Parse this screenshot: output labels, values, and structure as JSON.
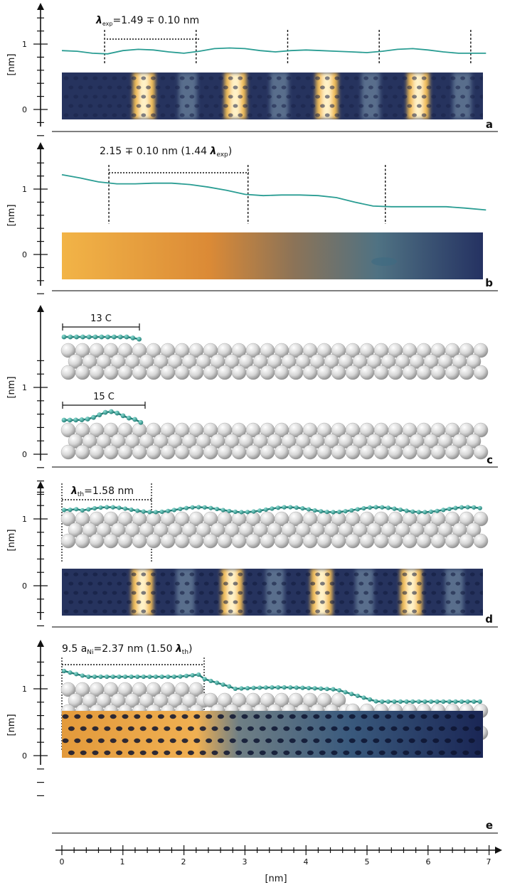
{
  "panels": [
    {
      "letter": "a",
      "y_axis_label": "[nm]",
      "y_ticks": [
        "1",
        "0"
      ],
      "annotation": {
        "sym": "λ",
        "sub": "exp",
        "rest": "=1.49 ∓ 0.10  nm"
      },
      "curve_x_nm": [
        0,
        0.25,
        0.5,
        0.75,
        1.0,
        1.25,
        1.5,
        1.75,
        2.0,
        2.25,
        2.5,
        2.75,
        3.0,
        3.25,
        3.5,
        3.75,
        4.0,
        4.25,
        4.5,
        4.75,
        5.0,
        5.25,
        5.5,
        5.75,
        6.0,
        6.25,
        6.5,
        6.75,
        6.95
      ],
      "curve_y_nm": [
        0.9,
        0.89,
        0.86,
        0.85,
        0.9,
        0.92,
        0.91,
        0.88,
        0.86,
        0.89,
        0.93,
        0.94,
        0.93,
        0.9,
        0.88,
        0.9,
        0.91,
        0.9,
        0.89,
        0.88,
        0.87,
        0.89,
        0.92,
        0.93,
        0.91,
        0.88,
        0.86,
        0.86,
        0.86
      ],
      "dashed_x_nm": [
        0.7,
        2.2,
        3.7,
        5.2,
        6.7
      ],
      "dotted_span_nm": [
        0.7,
        2.2
      ],
      "image": "stm-stripes"
    },
    {
      "letter": "b",
      "y_axis_label": "[nm]",
      "y_ticks": [
        "1",
        "0"
      ],
      "annotation": {
        "pre": "2.15 ∓ 0.10  nm (1.44 ",
        "sym": "λ",
        "sub": "exp",
        "post": ")"
      },
      "curve_x_nm": [
        0,
        0.3,
        0.6,
        0.9,
        1.2,
        1.5,
        1.8,
        2.1,
        2.4,
        2.7,
        3.0,
        3.3,
        3.6,
        3.9,
        4.2,
        4.5,
        4.8,
        5.1,
        5.4,
        5.7,
        6.0,
        6.3,
        6.6,
        6.95
      ],
      "curve_y_nm": [
        1.22,
        1.17,
        1.11,
        1.08,
        1.08,
        1.09,
        1.09,
        1.07,
        1.03,
        0.98,
        0.92,
        0.9,
        0.91,
        0.91,
        0.9,
        0.87,
        0.8,
        0.74,
        0.73,
        0.73,
        0.73,
        0.73,
        0.71,
        0.68
      ],
      "dashed_x_nm": [
        0.77,
        3.05,
        5.3
      ],
      "dotted_span_nm": [
        0.77,
        3.05
      ],
      "image": "stm-gradient"
    },
    {
      "letter": "c",
      "y_axis_label": "[nm]",
      "y_ticks": [
        "1",
        "0"
      ],
      "bracket_top": {
        "text": "13 C",
        "span_nm": [
          0,
          1.3
        ]
      },
      "bracket_bottom": {
        "text": "15 C",
        "span_nm": [
          0,
          1.4
        ]
      },
      "image": "atomistic-models"
    },
    {
      "letter": "d",
      "y_axis_label": "[nm]",
      "y_ticks": [
        "1",
        "0"
      ],
      "annotation": {
        "sym": "λ",
        "sub": "th",
        "rest": "=1.58 nm"
      },
      "dotted_span_nm": [
        0,
        1.47
      ],
      "image": "simulated-stm"
    },
    {
      "letter": "e",
      "y_axis_label": "[nm]",
      "y_ticks": [
        "1",
        "0"
      ],
      "annotation": {
        "pre": "9.5 a",
        "sub1": "Ni",
        "mid": "=2.37 nm (1.50 ",
        "sym": "λ",
        "sub2": "th",
        "post": ")"
      },
      "dotted_span_nm": [
        0,
        2.33
      ],
      "image": "simulated-stm-dots"
    }
  ],
  "x_axis": {
    "label": "[nm]",
    "ticks": [
      "0",
      "1",
      "2",
      "3",
      "4",
      "5",
      "6",
      "7"
    ]
  },
  "colors": {
    "teal": "#2a9d93",
    "orange": "#e8a23c",
    "navy": "#1d2a5c",
    "rule": "#333333"
  }
}
